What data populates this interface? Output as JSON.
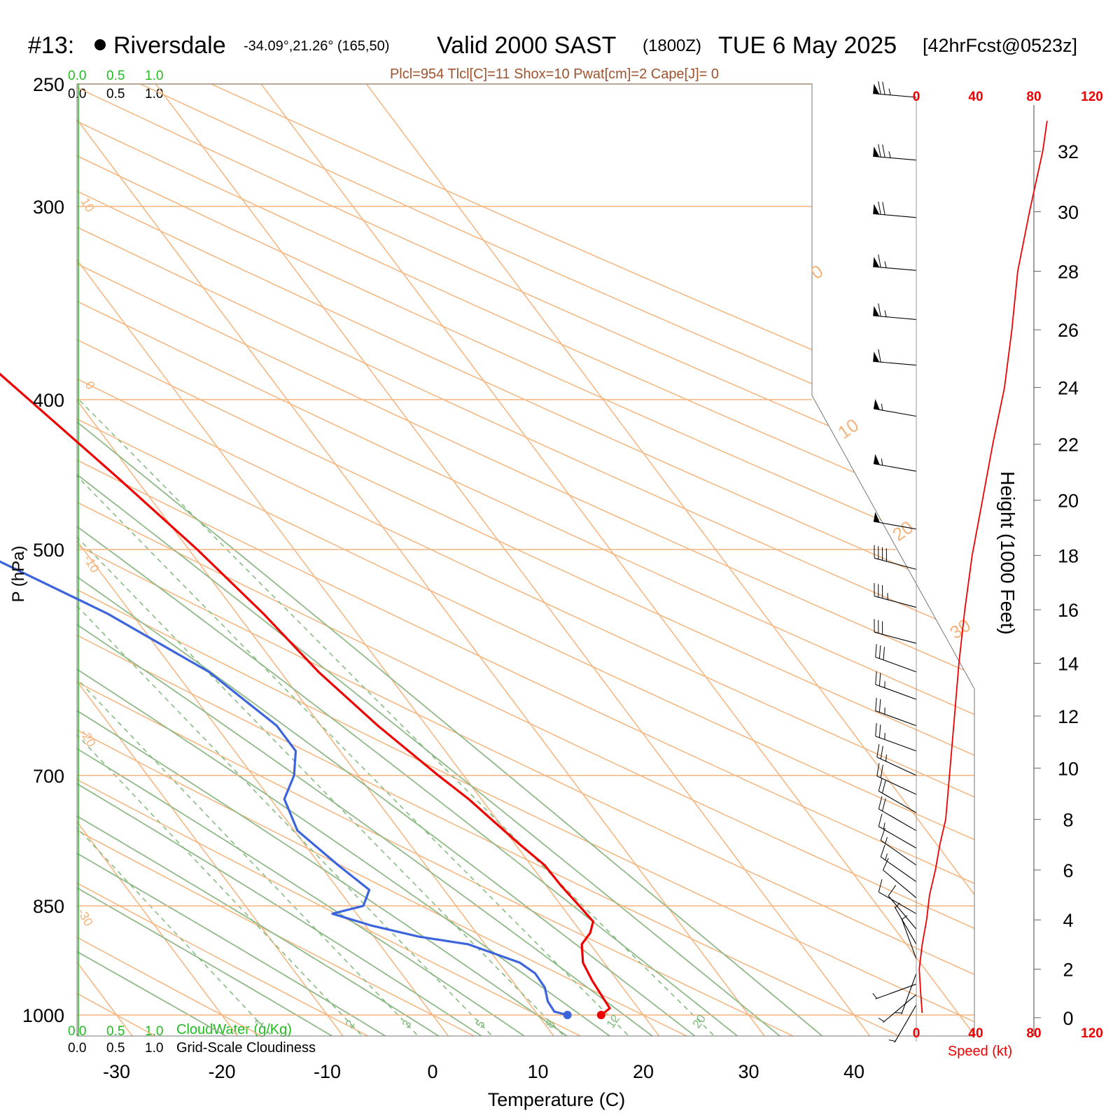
{
  "header": {
    "station_number": "#13:",
    "station_name": "Riversdale",
    "coords": "-34.09°,21.26° (165,50)",
    "valid_label": "Valid 2000 SAST",
    "zulu": "(1800Z)",
    "date": "TUE 6 May 2025",
    "forecast": "[42hrFcst@0523z]"
  },
  "indices_text": "Plcl=954 Tlcl[C]=11 Shox=10 Pwat[cm]=2 Cape[J]= 0",
  "colors": {
    "temperature": "#ee0000",
    "dewpoint": "#3c64dc",
    "isotherm": "#f5b47d",
    "dry_adiabat": "#f5b47d",
    "moist_adiabat": "#8fba88",
    "mixing_ratio": "#7fb97a",
    "speed": "#ee0000",
    "cloud_scale": "#22bb22"
  },
  "axes": {
    "xlabel": "Temperature (C)",
    "ylabel": "P (hPa)",
    "right_ylabel": "Height (1000 Feet)",
    "speed_label": "Speed (kt)"
  },
  "legend_scales": {
    "top_green": [
      "0.0",
      "0.5",
      "1.0"
    ],
    "top_black": [
      "0.0",
      "0.5",
      "1.0"
    ],
    "bottom_green": [
      "0.0",
      "0.5",
      "1.0"
    ],
    "bottom_black": [
      "0.0",
      "0.5",
      "1.0"
    ],
    "cloudwater_label": "CloudWater (g/Kg)",
    "cloudiness_label": "Grid-Scale Cloudiness"
  },
  "chart_data": {
    "type": "line",
    "chart_kind": "skew-T log-P sounding",
    "x_range_C": [
      -33,
      36
    ],
    "p_range_hPa": [
      250,
      1050
    ],
    "x_ticks": [
      -30,
      -20,
      -10,
      0,
      10,
      20,
      30,
      40
    ],
    "x_tick_labels": [
      "-30",
      "-20",
      "-10",
      "0",
      "10",
      "20",
      "30",
      "40"
    ],
    "p_ticks": [
      250,
      300,
      400,
      500,
      700,
      850,
      1000
    ],
    "p_tick_labels": [
      "250",
      "300",
      "400",
      "500",
      "700",
      "850",
      "1000"
    ],
    "height_ticks_kft": [
      0,
      2,
      4,
      6,
      8,
      10,
      12,
      14,
      16,
      18,
      20,
      22,
      24,
      26,
      28,
      30,
      32
    ],
    "height_tick_labels": [
      "0",
      "2",
      "4",
      "6",
      "8",
      "10",
      "12",
      "14",
      "16",
      "18",
      "20",
      "22",
      "24",
      "26",
      "28",
      "30",
      "32"
    ],
    "speed_ticks_kt": [
      0,
      40,
      80,
      120
    ],
    "speed_tick_labels": [
      "0",
      "40",
      "80",
      "120"
    ],
    "dry_adiabat_labels": [
      "-30",
      "-20",
      "-10",
      "0",
      "10",
      "0",
      "10",
      "20",
      "30"
    ],
    "mixing_ratio_lines": [
      1,
      2,
      3,
      5,
      8,
      12,
      20
    ],
    "mixing_ratio_labels": [
      "1",
      "2",
      "3",
      "5",
      "8",
      "12",
      "20"
    ],
    "series": [
      {
        "name": "temperature",
        "points": [
          {
            "p": 1000,
            "t": 16.0
          },
          {
            "p": 990,
            "t": 17.3
          },
          {
            "p": 975,
            "t": 17.4
          },
          {
            "p": 950,
            "t": 17.6
          },
          {
            "p": 925,
            "t": 18.0
          },
          {
            "p": 900,
            "t": 19.2
          },
          {
            "p": 885,
            "t": 20.8
          },
          {
            "p": 870,
            "t": 21.9
          },
          {
            "p": 850,
            "t": 21.7
          },
          {
            "p": 825,
            "t": 21.4
          },
          {
            "p": 800,
            "t": 21.3
          },
          {
            "p": 775,
            "t": 20.4
          },
          {
            "p": 750,
            "t": 19.6
          },
          {
            "p": 725,
            "t": 18.8
          },
          {
            "p": 700,
            "t": 17.6
          },
          {
            "p": 650,
            "t": 15.4
          },
          {
            "p": 600,
            "t": 13.6
          },
          {
            "p": 550,
            "t": 12.5
          },
          {
            "p": 500,
            "t": 10.8
          },
          {
            "p": 450,
            "t": 8.4
          },
          {
            "p": 400,
            "t": 5.5
          },
          {
            "p": 350,
            "t": 2.2
          },
          {
            "p": 300,
            "t": -1.8
          },
          {
            "p": 285,
            "t": -3.1
          },
          {
            "p": 265,
            "t": -5.3
          }
        ]
      },
      {
        "name": "dewpoint",
        "points": [
          {
            "p": 1000,
            "t": 12.8
          },
          {
            "p": 995,
            "t": 11.8
          },
          {
            "p": 980,
            "t": 11.9
          },
          {
            "p": 960,
            "t": 12.6
          },
          {
            "p": 940,
            "t": 12.7
          },
          {
            "p": 925,
            "t": 12.0
          },
          {
            "p": 900,
            "t": 8.4
          },
          {
            "p": 890,
            "t": 4.3
          },
          {
            "p": 875,
            "t": 0.5
          },
          {
            "p": 860,
            "t": -2.3
          },
          {
            "p": 850,
            "t": 1.2
          },
          {
            "p": 830,
            "t": 2.9
          },
          {
            "p": 800,
            "t": 1.7
          },
          {
            "p": 760,
            "t": 0.3
          },
          {
            "p": 725,
            "t": 1.3
          },
          {
            "p": 700,
            "t": 3.9
          },
          {
            "p": 675,
            "t": 5.8
          },
          {
            "p": 650,
            "t": 5.8
          },
          {
            "p": 600,
            "t": 3.2
          },
          {
            "p": 550,
            "t": -2.3
          },
          {
            "p": 500,
            "t": -10.3
          },
          {
            "p": 450,
            "t": -19.4
          },
          {
            "p": 420,
            "t": -22.8
          },
          {
            "p": 400,
            "t": -24.2
          },
          {
            "p": 350,
            "t": -27.7
          },
          {
            "p": 330,
            "t": -28.7
          },
          {
            "p": 300,
            "t": -28.1
          },
          {
            "p": 280,
            "t": -29.6
          },
          {
            "p": 265,
            "t": -31.4
          }
        ]
      },
      {
        "name": "wind_speed",
        "points_kt_vs_kft": [
          {
            "h": 0.2,
            "s": 4
          },
          {
            "h": 1,
            "s": 3
          },
          {
            "h": 2,
            "s": 2
          },
          {
            "h": 3,
            "s": 4
          },
          {
            "h": 4,
            "s": 7
          },
          {
            "h": 5,
            "s": 9
          },
          {
            "h": 6,
            "s": 13
          },
          {
            "h": 7,
            "s": 16
          },
          {
            "h": 8,
            "s": 20
          },
          {
            "h": 10,
            "s": 23
          },
          {
            "h": 12,
            "s": 26
          },
          {
            "h": 14,
            "s": 29
          },
          {
            "h": 16,
            "s": 33
          },
          {
            "h": 18,
            "s": 38
          },
          {
            "h": 20,
            "s": 45
          },
          {
            "h": 22,
            "s": 52
          },
          {
            "h": 24,
            "s": 60
          },
          {
            "h": 26,
            "s": 65
          },
          {
            "h": 28,
            "s": 69
          },
          {
            "h": 30,
            "s": 77
          },
          {
            "h": 32,
            "s": 86
          },
          {
            "h": 33,
            "s": 89
          }
        ]
      }
    ],
    "surface_markers": [
      {
        "name": "surface-temperature",
        "p": 1000,
        "t": 16.0
      },
      {
        "name": "surface-dewpoint",
        "p": 1000,
        "t": 12.8
      }
    ],
    "wind_barbs": [
      {
        "p": 255,
        "dir": 275,
        "kt": 75
      },
      {
        "p": 280,
        "dir": 275,
        "kt": 75
      },
      {
        "p": 305,
        "dir": 275,
        "kt": 70
      },
      {
        "p": 330,
        "dir": 275,
        "kt": 65
      },
      {
        "p": 355,
        "dir": 275,
        "kt": 65
      },
      {
        "p": 380,
        "dir": 275,
        "kt": 60
      },
      {
        "p": 410,
        "dir": 280,
        "kt": 55
      },
      {
        "p": 445,
        "dir": 280,
        "kt": 55
      },
      {
        "p": 485,
        "dir": 280,
        "kt": 50
      },
      {
        "p": 515,
        "dir": 285,
        "kt": 40
      },
      {
        "p": 545,
        "dir": 285,
        "kt": 35
      },
      {
        "p": 575,
        "dir": 285,
        "kt": 30
      },
      {
        "p": 600,
        "dir": 290,
        "kt": 30
      },
      {
        "p": 625,
        "dir": 290,
        "kt": 25
      },
      {
        "p": 650,
        "dir": 290,
        "kt": 25
      },
      {
        "p": 675,
        "dir": 290,
        "kt": 25
      },
      {
        "p": 700,
        "dir": 295,
        "kt": 25
      },
      {
        "p": 720,
        "dir": 295,
        "kt": 20
      },
      {
        "p": 740,
        "dir": 300,
        "kt": 20
      },
      {
        "p": 760,
        "dir": 300,
        "kt": 20
      },
      {
        "p": 780,
        "dir": 300,
        "kt": 15
      },
      {
        "p": 800,
        "dir": 305,
        "kt": 15
      },
      {
        "p": 820,
        "dir": 305,
        "kt": 15
      },
      {
        "p": 840,
        "dir": 310,
        "kt": 10
      },
      {
        "p": 860,
        "dir": 300,
        "kt": 10
      },
      {
        "p": 880,
        "dir": 320,
        "kt": 10
      },
      {
        "p": 900,
        "dir": 330,
        "kt": 5
      },
      {
        "p": 920,
        "dir": 340,
        "kt": 5
      },
      {
        "p": 940,
        "dir": 200,
        "kt": 5
      },
      {
        "p": 955,
        "dir": 250,
        "kt": 5
      },
      {
        "p": 970,
        "dir": 230,
        "kt": 5
      },
      {
        "p": 985,
        "dir": 210,
        "kt": 5
      }
    ]
  }
}
